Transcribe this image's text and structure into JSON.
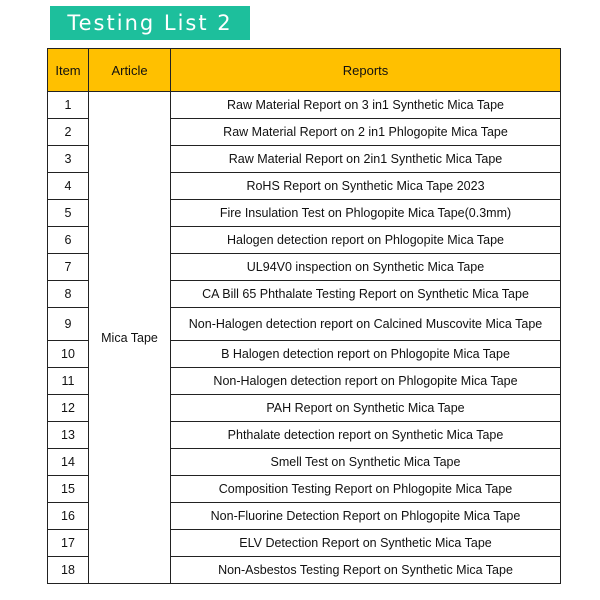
{
  "title": "Testing List 2",
  "colors": {
    "title_bg": "#1dbf9c",
    "header_bg": "#ffc000"
  },
  "headers": {
    "item": "Item",
    "article": "Article",
    "reports": "Reports"
  },
  "article": "Mica Tape",
  "rows": [
    {
      "item": "1",
      "report": "Raw Material Report on 3 in1 Synthetic Mica Tape"
    },
    {
      "item": "2",
      "report": "Raw Material Report on 2 in1 Phlogopite Mica Tape"
    },
    {
      "item": "3",
      "report": "Raw Material Report on 2in1 Synthetic Mica Tape"
    },
    {
      "item": "4",
      "report": "RoHS Report on Synthetic Mica Tape 2023"
    },
    {
      "item": "5",
      "report": "Fire Insulation Test on Phlogopite Mica Tape(0.3mm)"
    },
    {
      "item": "6",
      "report": "Halogen detection report on Phlogopite Mica Tape"
    },
    {
      "item": "7",
      "report": "UL94V0 inspection on Synthetic Mica Tape"
    },
    {
      "item": "8",
      "report": "CA Bill 65 Phthalate Testing Report on Synthetic Mica Tape"
    },
    {
      "item": "9",
      "report": "Non-Halogen detection report on Calcined Muscovite Mica Tape"
    },
    {
      "item": "10",
      "report": "B Halogen detection report on Phlogopite Mica Tape"
    },
    {
      "item": "11",
      "report": "Non-Halogen detection report on Phlogopite Mica Tape"
    },
    {
      "item": "12",
      "report": "PAH Report on Synthetic Mica Tape"
    },
    {
      "item": "13",
      "report": "Phthalate detection report on Synthetic Mica Tape"
    },
    {
      "item": "14",
      "report": "Smell Test on Synthetic Mica Tape"
    },
    {
      "item": "15",
      "report": "Composition Testing Report on Phlogopite Mica Tape"
    },
    {
      "item": "16",
      "report": "Non-Fluorine Detection Report on Phlogopite Mica Tape"
    },
    {
      "item": "17",
      "report": "ELV Detection Report on Synthetic Mica Tape"
    },
    {
      "item": "18",
      "report": "Non-Asbestos Testing Report on Synthetic Mica Tape"
    }
  ]
}
